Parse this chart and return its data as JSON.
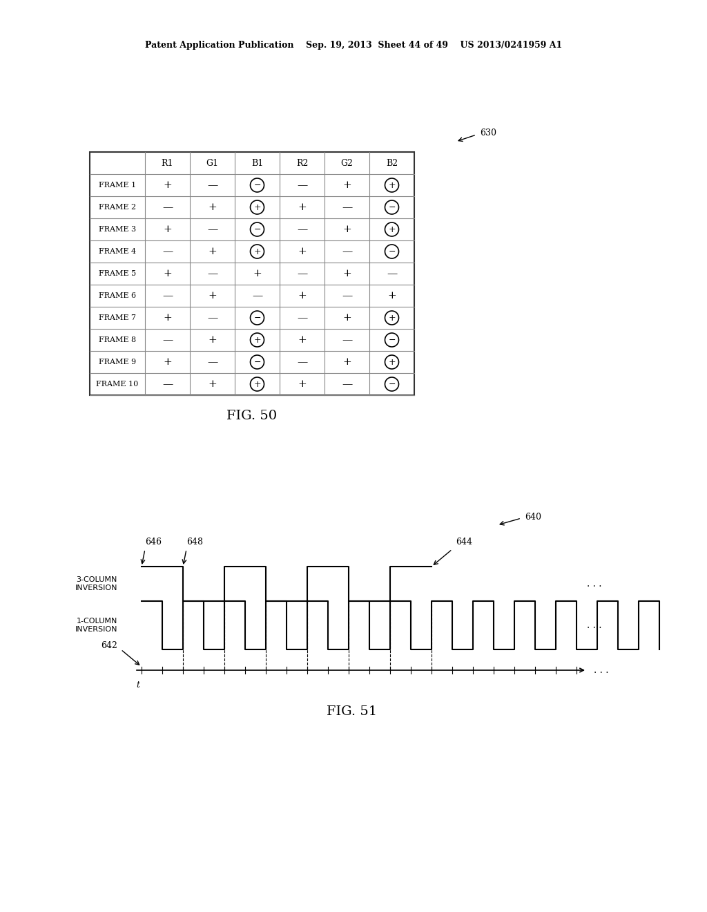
{
  "header_text": "Patent Application Publication    Sep. 19, 2013  Sheet 44 of 49    US 2013/0241959 A1",
  "fig50_label": "FIG. 50",
  "fig51_label": "FIG. 51",
  "ref_630": "630",
  "ref_640": "640",
  "ref_642": "642",
  "ref_644": "644",
  "ref_646": "646",
  "ref_648": "648",
  "table_cols": [
    "",
    "R1",
    "G1",
    "B1",
    "R2",
    "G2",
    "B2"
  ],
  "table_rows": [
    [
      "FRAME 1",
      "+",
      "–",
      "circled_minus",
      "–",
      "+",
      "circled_plus"
    ],
    [
      "FRAME 2",
      "–",
      "+",
      "circled_plus",
      "+",
      "–",
      "circled_minus"
    ],
    [
      "FRAME 3",
      "+",
      "–",
      "circled_minus",
      "–",
      "+",
      "circled_plus"
    ],
    [
      "FRAME 4",
      "–",
      "+",
      "circled_plus",
      "+",
      "–",
      "circled_minus"
    ],
    [
      "FRAME 5",
      "+",
      "–",
      "+",
      "–",
      "+",
      "–"
    ],
    [
      "FRAME 6",
      "–",
      "+",
      "–",
      "+",
      "–",
      "+"
    ],
    [
      "FRAME 7",
      "+",
      "–",
      "circled_minus",
      "–",
      "+",
      "circled_plus"
    ],
    [
      "FRAME 8",
      "–",
      "+",
      "circled_plus",
      "+",
      "–",
      "circled_minus"
    ],
    [
      "FRAME 9",
      "+",
      "–",
      "circled_minus",
      "–",
      "+",
      "circled_plus"
    ],
    [
      "FRAME 10",
      "–",
      "+",
      "circled_plus",
      "+",
      "–",
      "circled_minus"
    ]
  ],
  "bg_color": "#ffffff",
  "text_color": "#000000",
  "line_color": "#000000",
  "table_line_color": "#888888",
  "font_size_header": 9,
  "font_size_table": 8,
  "font_size_fig": 12
}
